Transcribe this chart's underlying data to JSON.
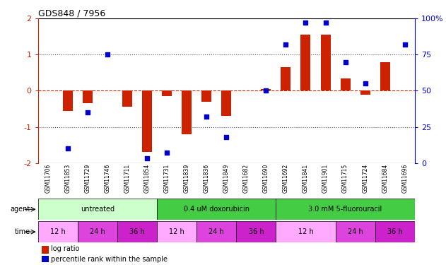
{
  "title": "GDS848 / 7956",
  "samples": [
    "GSM11706",
    "GSM11853",
    "GSM11729",
    "GSM11746",
    "GSM11711",
    "GSM11854",
    "GSM11731",
    "GSM11839",
    "GSM11836",
    "GSM11849",
    "GSM11682",
    "GSM11690",
    "GSM11692",
    "GSM11841",
    "GSM11901",
    "GSM11715",
    "GSM11724",
    "GSM11684",
    "GSM11696"
  ],
  "log_ratio": [
    0.0,
    -0.55,
    -0.35,
    0.0,
    -0.45,
    -1.7,
    -0.15,
    -1.2,
    -0.3,
    -0.7,
    0.0,
    0.05,
    0.65,
    1.55,
    1.55,
    0.35,
    -0.1,
    0.8,
    0.0
  ],
  "percentile_rank": [
    null,
    10,
    35,
    75,
    null,
    3,
    7,
    null,
    32,
    18,
    null,
    50,
    82,
    97,
    97,
    70,
    55,
    null,
    82
  ],
  "ylim_left": [
    -2,
    2
  ],
  "ylim_right": [
    0,
    100
  ],
  "yticks_left": [
    -2,
    -1,
    0,
    1,
    2
  ],
  "yticks_right": [
    0,
    25,
    50,
    75,
    100
  ],
  "bar_color": "#cc2200",
  "dot_color": "#0000cc",
  "dotted_line_color": "#555555",
  "agent_groups": [
    {
      "label": "untreated",
      "start": 0,
      "end": 5,
      "color": "#ccffcc"
    },
    {
      "label": "0.4 uM doxorubicin",
      "start": 6,
      "end": 11,
      "color": "#44cc44"
    },
    {
      "label": "3.0 mM 5-fluorouracil",
      "start": 12,
      "end": 18,
      "color": "#44cc44"
    }
  ],
  "time_groups": [
    {
      "label": "12 h",
      "start": 0,
      "end": 1,
      "color": "#ffaaff"
    },
    {
      "label": "24 h",
      "start": 2,
      "end": 3,
      "color": "#dd44dd"
    },
    {
      "label": "36 h",
      "start": 4,
      "end": 5,
      "color": "#cc22cc"
    },
    {
      "label": "12 h",
      "start": 6,
      "end": 7,
      "color": "#ffaaff"
    },
    {
      "label": "24 h",
      "start": 8,
      "end": 9,
      "color": "#dd44dd"
    },
    {
      "label": "36 h",
      "start": 10,
      "end": 11,
      "color": "#cc22cc"
    },
    {
      "label": "12 h",
      "start": 12,
      "end": 14,
      "color": "#ffaaff"
    },
    {
      "label": "24 h",
      "start": 15,
      "end": 16,
      "color": "#dd44dd"
    },
    {
      "label": "36 h",
      "start": 17,
      "end": 18,
      "color": "#cc22cc"
    }
  ],
  "legend_red": "log ratio",
  "legend_blue": "percentile rank within the sample"
}
